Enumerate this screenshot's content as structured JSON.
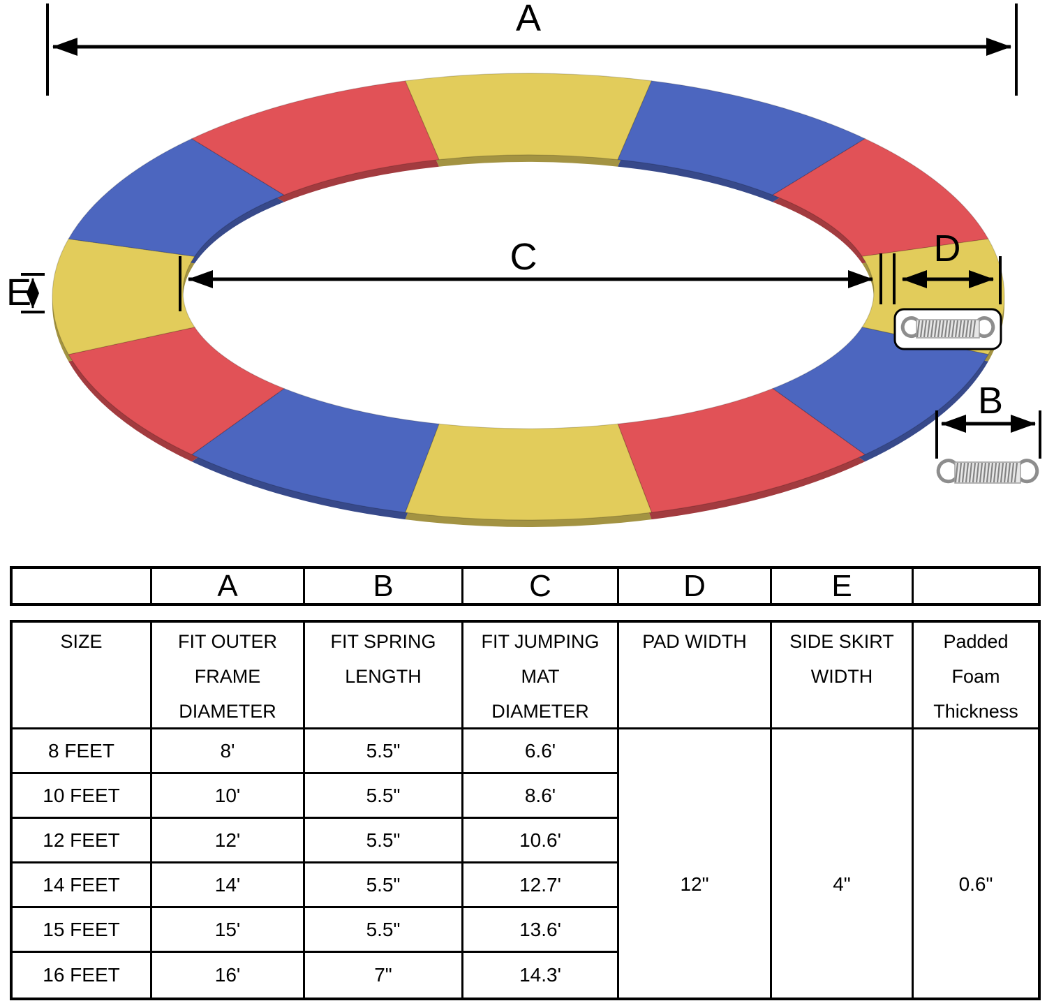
{
  "diagram": {
    "labels": {
      "a": "A",
      "b": "B",
      "c": "C",
      "d": "D",
      "e": "E"
    },
    "colors": {
      "yellow": "#E2CC5B",
      "blue": "#4C66BF",
      "red": "#E15257",
      "line": "#000000"
    },
    "segment_pattern": [
      "yellow",
      "blue",
      "red"
    ],
    "segments_count": 12,
    "icons": {
      "spring": "spring-icon"
    }
  },
  "table": {
    "letter_row": [
      "",
      "A",
      "B",
      "C",
      "D",
      "E",
      ""
    ],
    "header_row": [
      [
        "SIZE"
      ],
      [
        "FIT OUTER",
        "FRAME",
        "DIAMETER"
      ],
      [
        "FIT SPRING",
        "LENGTH"
      ],
      [
        "FIT JUMPING",
        "MAT",
        "DIAMETER"
      ],
      [
        "PAD WIDTH"
      ],
      [
        "SIDE SKIRT",
        "WIDTH"
      ],
      [
        "Padded",
        "Foam",
        "Thickness"
      ]
    ],
    "rows": [
      [
        "8 FEET",
        "8'",
        "5.5\"",
        "6.6'"
      ],
      [
        "10 FEET",
        "10'",
        "5.5\"",
        "8.6'"
      ],
      [
        "12 FEET",
        "12'",
        "5.5\"",
        "10.6'"
      ],
      [
        "14 FEET",
        "14'",
        "5.5\"",
        "12.7'"
      ],
      [
        "15 FEET",
        "15'",
        "5.5\"",
        "13.6'"
      ],
      [
        "16 FEET",
        "16'",
        "7\"",
        "14.3'"
      ]
    ],
    "merged": {
      "pad_width": "12\"",
      "side_skirt_width": "4\"",
      "padded_foam_thickness": "0.6\""
    }
  }
}
